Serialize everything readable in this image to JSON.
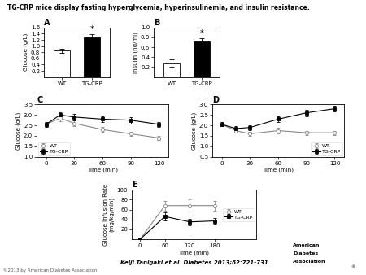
{
  "title": "TG-CRP mice display fasting hyperglycemia, hyperinsulinemia, and insulin resistance.",
  "annotations": [
    "Keiji Tanigaki et al. Diabetes 2013;62:721-731",
    "©2013 by American Diabetes Association",
    "American",
    "Diabetes",
    "Association",
    "®"
  ],
  "chart_data": [
    {
      "type": "bar",
      "title": "A",
      "ylabel": "Glucose (g/L)",
      "categories": [
        "WT",
        "TG-CRP"
      ],
      "values": [
        0.85,
        1.28
      ],
      "errors": [
        0.07,
        0.1
      ],
      "colors": [
        "white",
        "black"
      ],
      "ylim": [
        0,
        1.6
      ],
      "yticks": [
        0.2,
        0.4,
        0.6,
        0.8,
        {
          "value": 1.0,
          "label": "1.0"
        },
        1.2,
        1.4,
        1.6
      ],
      "annotations": [
        {
          "text": "*",
          "category": "TG-CRP"
        }
      ]
    },
    {
      "type": "bar",
      "title": "B",
      "ylabel": "Insulin (ng/ml)",
      "categories": [
        "WT",
        "TG-CRP"
      ],
      "values": [
        0.28,
        0.72
      ],
      "errors": [
        0.08,
        0.06
      ],
      "colors": [
        "white",
        "black"
      ],
      "ylim": [
        0,
        1.0
      ],
      "yticks": [
        0.2,
        0.4,
        0.6,
        0.8,
        {
          "value": 1.0,
          "label": "1.0"
        }
      ],
      "annotations": [
        {
          "text": "*",
          "category": "TG-CRP"
        }
      ]
    },
    {
      "type": "line",
      "title": "C",
      "xlabel": "Time (min)",
      "ylabel": "Glucose (g/L)",
      "x": [
        0,
        15,
        30,
        60,
        90,
        120
      ],
      "series": [
        {
          "name": "WT",
          "color": "#888888",
          "marker": "circle",
          "values": [
            2.55,
            2.85,
            2.6,
            2.3,
            2.1,
            1.9
          ],
          "errors": [
            0.12,
            0.15,
            0.13,
            0.12,
            0.11,
            0.1
          ]
        },
        {
          "name": "TG-CRP",
          "color": "#000000",
          "marker": "square",
          "values": [
            2.55,
            3.0,
            2.9,
            2.8,
            2.75,
            2.55
          ],
          "errors": [
            0.12,
            0.13,
            0.15,
            0.15,
            0.15,
            0.13
          ]
        }
      ],
      "xlim": [
        -10,
        130
      ],
      "xticks": [
        0,
        30,
        60,
        90,
        120
      ],
      "ylim": [
        1.0,
        3.5
      ],
      "yticks": [
        {
          "value": 1.0,
          "label": "1.0"
        },
        1.5,
        {
          "value": 2.0,
          "label": "2.0"
        },
        2.5,
        {
          "value": 3.0,
          "label": "3.0"
        },
        3.5
      ],
      "legend": "lower left"
    },
    {
      "type": "line",
      "title": "D",
      "xlabel": "Time (min)",
      "ylabel": "Glucose (g/L)",
      "x": [
        0,
        15,
        30,
        60,
        90,
        120
      ],
      "series": [
        {
          "name": "WT",
          "color": "#888888",
          "marker": "circle",
          "values": [
            2.05,
            1.75,
            1.6,
            1.75,
            1.65,
            1.65
          ],
          "errors": [
            0.1,
            0.1,
            0.1,
            0.12,
            0.1,
            0.1
          ]
        },
        {
          "name": "TG-CRP",
          "color": "#000000",
          "marker": "square",
          "values": [
            2.05,
            1.85,
            1.9,
            2.3,
            2.6,
            2.8
          ],
          "errors": [
            0.1,
            0.1,
            0.12,
            0.15,
            0.15,
            0.13
          ]
        }
      ],
      "xlim": [
        -10,
        130
      ],
      "xticks": [
        0,
        30,
        60,
        90,
        120
      ],
      "ylim": [
        0.5,
        3.0
      ],
      "yticks": [
        0.5,
        {
          "value": 1.0,
          "label": "1.0"
        },
        1.5,
        {
          "value": 2.0,
          "label": "2.0"
        },
        2.5,
        {
          "value": 3.0,
          "label": "3.0"
        }
      ],
      "legend": "lower right"
    },
    {
      "type": "line",
      "title": "E",
      "xlabel": "Time (min)",
      "ylabel": "Glucose Infusion Rate\n(mg/kg/min)",
      "x": [
        0,
        60,
        120,
        180
      ],
      "series": [
        {
          "name": "WT",
          "color": "#888888",
          "marker": "circle",
          "values": [
            0,
            68,
            68,
            68
          ],
          "errors": [
            0,
            10,
            12,
            10
          ]
        },
        {
          "name": "TG-CRP",
          "color": "#000000",
          "marker": "square",
          "values": [
            0,
            46,
            35,
            37
          ],
          "errors": [
            0,
            8,
            7,
            6
          ]
        }
      ],
      "xlim": [
        -20,
        280
      ],
      "xticks": [
        0,
        60,
        120,
        180
      ],
      "ylim": [
        0,
        100
      ],
      "yticks": [
        20,
        40,
        60,
        80,
        100
      ],
      "legend": "center right"
    }
  ]
}
